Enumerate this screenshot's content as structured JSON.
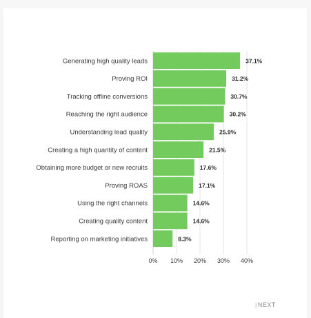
{
  "colors": {
    "bar": "#72cb5c",
    "gridline": "#e4e4e4",
    "axis": "#cfcfcf",
    "background": "#f6f6f6",
    "card": "#ffffff"
  },
  "chart_data": {
    "type": "bar",
    "orientation": "horizontal",
    "categories": [
      "Generating high quality leads",
      "Proving ROI",
      "Tracking offline conversions",
      "Reaching the right audience",
      "Understanding lead quality",
      "Creating a high quantity of content",
      "Obtaining more budget or new recruits",
      "Proving ROAS",
      "Using the right channels",
      "Creating quality content",
      "Reporting on marketing initiatives"
    ],
    "values": [
      37.1,
      31.2,
      30.7,
      30.2,
      25.9,
      21.5,
      17.6,
      17.1,
      14.6,
      14.6,
      8.3
    ],
    "value_labels": [
      "37.1%",
      "31.2%",
      "30.7%",
      "30.2%",
      "25.9%",
      "21.5%",
      "17.6%",
      "17.1%",
      "14.6%",
      "14.6%",
      "8.3%"
    ],
    "xlim": [
      0,
      40
    ],
    "x_ticks": [
      0,
      10,
      20,
      30,
      40
    ],
    "x_tick_labels": [
      "0%",
      "10%",
      "20%",
      "30%",
      "40%"
    ],
    "title": "",
    "xlabel": "",
    "ylabel": "",
    "grid": "vertical",
    "legend": "none"
  },
  "nav": {
    "next_separator": "|",
    "next_label": "NEXT"
  }
}
